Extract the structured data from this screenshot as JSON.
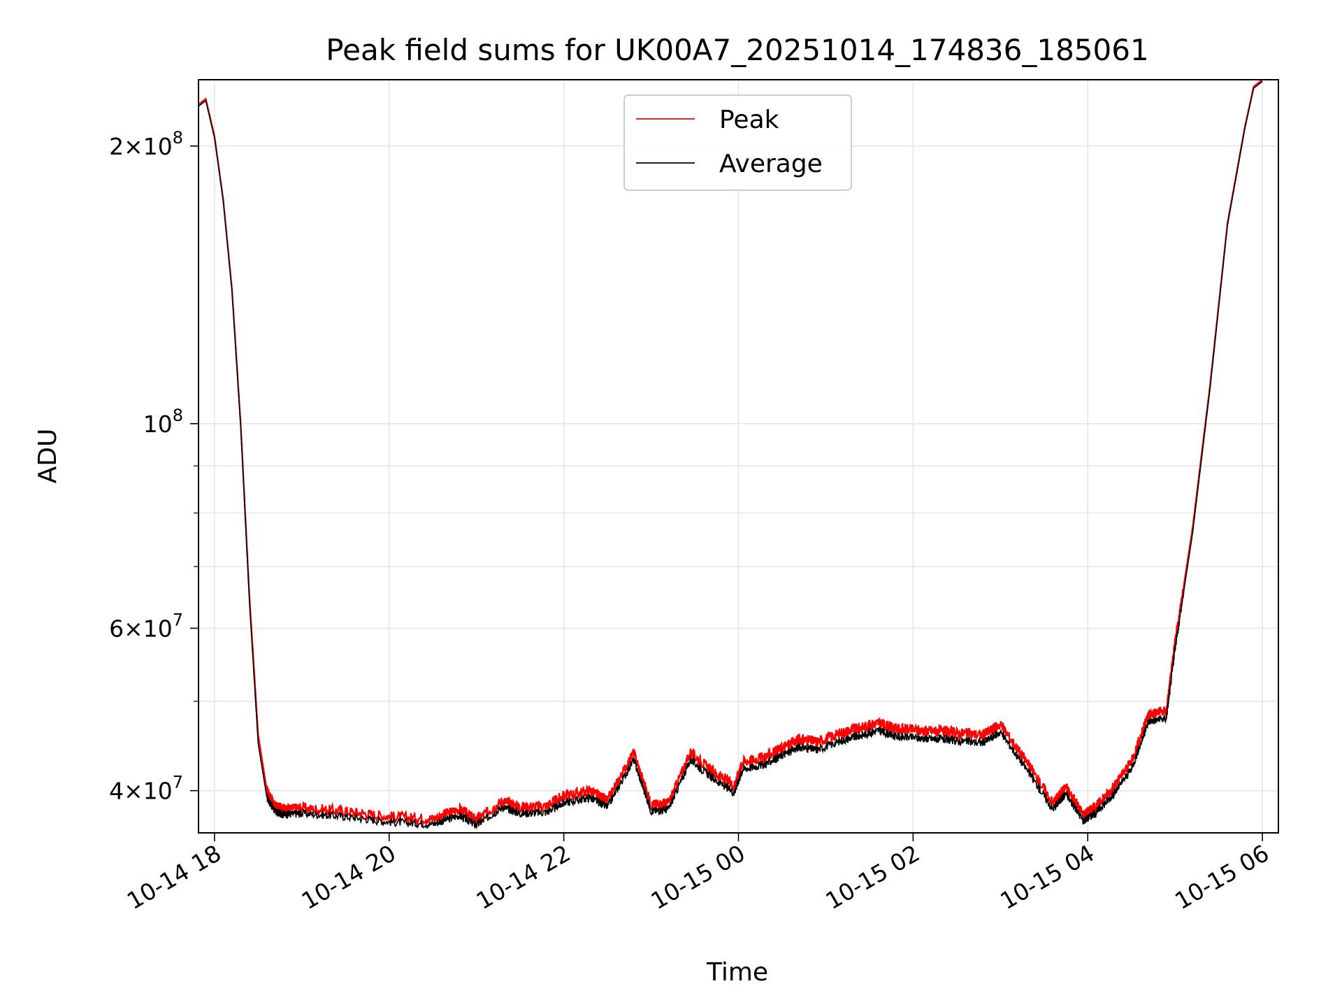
{
  "chart_data": {
    "type": "line",
    "title": "Peak field sums for UK00A7_20251014_174836_185061",
    "xlabel": "Time",
    "ylabel": "ADU",
    "y_scale": "log",
    "ylim": [
      36000000,
      236000000
    ],
    "xlim_hours_since_start": [
      17.8167,
      30.1833
    ],
    "x_ticks": [
      "10-14 18",
      "10-14 20",
      "10-14 22",
      "10-15 00",
      "10-15 02",
      "10-15 04",
      "10-15 06"
    ],
    "x_tick_hours": [
      18,
      20,
      22,
      24,
      26,
      28,
      30
    ],
    "y_ticks": [
      {
        "value": 200000000,
        "mantissa": "2",
        "exponent": "8"
      },
      {
        "value": 100000000,
        "mantissa": "",
        "exponent": "8"
      },
      {
        "value": 60000000,
        "mantissa": "6",
        "exponent": "7"
      },
      {
        "value": 40000000,
        "mantissa": "4",
        "exponent": "7"
      }
    ],
    "y_minor_ticks": [
      90000000,
      80000000,
      70000000,
      50000000,
      30000000
    ],
    "grid": true,
    "legend_placement": "top-center",
    "colors": {
      "peak": "#ff0000",
      "average": "#000000"
    },
    "series": [
      {
        "name": "Peak",
        "x": [
          17.82,
          17.9,
          18.0,
          18.1,
          18.2,
          18.3,
          18.4,
          18.5,
          18.6,
          18.7,
          18.8,
          19.0,
          19.5,
          20.0,
          20.5,
          20.8,
          21.0,
          21.3,
          21.5,
          21.8,
          22.0,
          22.3,
          22.5,
          22.8,
          23.0,
          23.2,
          23.45,
          23.7,
          23.95,
          24.05,
          24.3,
          24.5,
          24.7,
          24.9,
          25.2,
          25.4,
          25.6,
          25.8,
          26.1,
          26.3,
          26.5,
          26.8,
          27.0,
          27.3,
          27.6,
          27.75,
          27.95,
          28.1,
          28.3,
          28.5,
          28.7,
          28.9,
          29.0,
          29.2,
          29.4,
          29.6,
          29.8,
          29.9,
          30.0
        ],
        "y": [
          222000000,
          225000000,
          205000000,
          175000000,
          140000000,
          100000000,
          65000000,
          46000000,
          40000000,
          38400000,
          38200000,
          38300000,
          38000000,
          37500000,
          37300000,
          38200000,
          37200000,
          39000000,
          38400000,
          38500000,
          39500000,
          40000000,
          39000000,
          44000000,
          38600000,
          38800000,
          44000000,
          42000000,
          40500000,
          43000000,
          43500000,
          44500000,
          45500000,
          45200000,
          46300000,
          46800000,
          47400000,
          46700000,
          46500000,
          46400000,
          46200000,
          46000000,
          47200000,
          43000000,
          38800000,
          40400000,
          37700000,
          38500000,
          40400000,
          43000000,
          48500000,
          48800000,
          58000000,
          77000000,
          110000000,
          165000000,
          210000000,
          232000000,
          236000000
        ]
      },
      {
        "name": "Average",
        "x": [
          17.82,
          17.9,
          18.0,
          18.1,
          18.2,
          18.3,
          18.4,
          18.5,
          18.6,
          18.7,
          18.8,
          19.0,
          19.5,
          20.0,
          20.5,
          20.8,
          21.0,
          21.3,
          21.5,
          21.8,
          22.0,
          22.3,
          22.5,
          22.8,
          23.0,
          23.2,
          23.45,
          23.7,
          23.95,
          24.05,
          24.3,
          24.5,
          24.7,
          24.9,
          25.2,
          25.4,
          25.6,
          25.8,
          26.1,
          26.3,
          26.5,
          26.8,
          27.0,
          27.3,
          27.6,
          27.75,
          27.95,
          28.1,
          28.3,
          28.5,
          28.7,
          28.9,
          29.0,
          29.2,
          29.4,
          29.6,
          29.8,
          29.9,
          30.0
        ],
        "y": [
          221000000,
          224000000,
          204000000,
          174000000,
          139000000,
          99000000,
          64000000,
          45000000,
          39300000,
          37900000,
          37700000,
          37800000,
          37500000,
          37000000,
          36800000,
          37600000,
          36700000,
          38400000,
          37800000,
          37900000,
          38800000,
          39300000,
          38400000,
          43200000,
          38000000,
          38200000,
          43200000,
          41300000,
          39800000,
          42200000,
          42700000,
          43700000,
          44600000,
          44300000,
          45400000,
          45900000,
          46500000,
          45800000,
          45600000,
          45500000,
          45300000,
          45100000,
          46300000,
          42200000,
          38200000,
          39700000,
          37100000,
          37900000,
          39700000,
          42200000,
          47600000,
          47900000,
          57000000,
          76000000,
          109000000,
          164000000,
          209000000,
          231000000,
          235000000
        ]
      }
    ]
  }
}
